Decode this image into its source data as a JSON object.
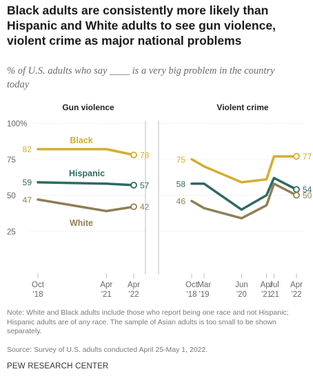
{
  "title": "Black adults are consistently more likely than Hispanic and White adults to see gun violence, violent crime as major national problems",
  "subtitle": "% of U.S. adults who say ____ is a very big problem in the country today",
  "note": "Note: White and Black adults include those who report being one race and not Hispanic; Hispanic adults are of any race. The sample of Asian adults is too small to be shown separately.",
  "source": "Source: Survey of U.S. adults conducted April 25-May 1, 2022.",
  "brand": "PEW RESEARCH CENTER",
  "colors": {
    "black": "#d4ad2e",
    "hispanic": "#2e6a60",
    "white": "#8f7f55",
    "axis": "#bcbcbc",
    "tick_text": "#666666"
  },
  "chart_data": [
    {
      "type": "line",
      "title": "Gun violence",
      "ylim": [
        25,
        100
      ],
      "yticks": [
        25,
        50,
        75,
        100
      ],
      "ytick_labels": [
        "25",
        "50",
        "75",
        "100%"
      ],
      "x": [
        "2018-10",
        "2021-04",
        "2022-04"
      ],
      "xtick_labels": [
        [
          "Oct",
          "'18"
        ],
        [
          "Apr",
          "'21"
        ],
        [
          "Apr",
          "'22"
        ]
      ],
      "series": [
        {
          "name": "Black",
          "key": "black",
          "values": [
            82,
            82,
            78
          ],
          "start_label": "82",
          "end_label": "78"
        },
        {
          "name": "Hispanic",
          "key": "hispanic",
          "values": [
            59,
            58,
            57
          ],
          "start_label": "59",
          "end_label": "57"
        },
        {
          "name": "White",
          "key": "white",
          "values": [
            47,
            39,
            42
          ],
          "start_label": "47",
          "end_label": "42"
        }
      ]
    },
    {
      "type": "line",
      "title": "Violent crime",
      "ylim": [
        25,
        100
      ],
      "x": [
        "2018-10",
        "2019-03",
        "2020-06",
        "2021-04",
        "2021-07",
        "2022-04"
      ],
      "xtick_labels": [
        [
          "Oct",
          "'18"
        ],
        [
          "Mar",
          "'19"
        ],
        [
          "Jun",
          "'20"
        ],
        [
          "Apr",
          "'21"
        ],
        [
          "Jul",
          "'21"
        ],
        [
          "Apr",
          "'22"
        ]
      ],
      "series": [
        {
          "key": "black",
          "values": [
            75,
            70,
            59,
            61,
            77,
            77
          ],
          "start_label": "75",
          "end_label": "77"
        },
        {
          "key": "hispanic",
          "values": [
            58,
            58,
            40,
            50,
            62,
            54
          ],
          "start_label": "58",
          "end_label": "54"
        },
        {
          "key": "white",
          "values": [
            46,
            41,
            34,
            43,
            58,
            50
          ],
          "start_label": "46",
          "end_label": "50"
        }
      ]
    }
  ]
}
